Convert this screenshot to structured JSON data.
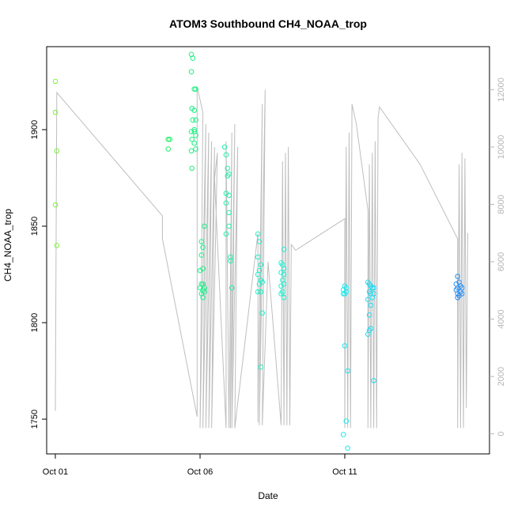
{
  "chart_data": {
    "type": "scatter",
    "title": "ATOM3 Southbound CH4_NOAA_trop",
    "xlabel": "Date",
    "ylabel": "CH4_NOAA_trop",
    "x_ticks": [
      "Oct 01",
      "Oct 06",
      "Oct 11"
    ],
    "x_tick_days": [
      1,
      6,
      11
    ],
    "xlim": [
      0.7,
      16.0
    ],
    "y_ticks": [
      1750,
      1800,
      1850,
      1900
    ],
    "ylim": [
      1732,
      1943
    ],
    "y2_ticks": [
      0,
      2000,
      4000,
      6000,
      8000,
      10000,
      12000
    ],
    "y2lim": [
      -700,
      13500
    ],
    "colors": {
      "altitude_line": "#bebebe",
      "axis": "#000000",
      "secondary_axis": "#b5b5b5",
      "point_gradient": [
        "#7cf23a",
        "#1fee5a",
        "#1ff0c6",
        "#1fe3f2",
        "#2a8cf0"
      ]
    },
    "series": [
      {
        "type": "scatter",
        "points": [
          [
            1.0,
            1925
          ],
          [
            1.0,
            1909
          ],
          [
            1.05,
            1889
          ],
          [
            1.0,
            1861
          ],
          [
            1.05,
            1840
          ],
          [
            4.9,
            1895
          ],
          [
            4.95,
            1895
          ],
          [
            4.9,
            1890
          ],
          [
            5.7,
            1939
          ],
          [
            5.75,
            1937
          ],
          [
            5.7,
            1930
          ],
          [
            5.8,
            1921
          ],
          [
            5.85,
            1921
          ],
          [
            5.72,
            1911
          ],
          [
            5.8,
            1910
          ],
          [
            5.75,
            1905
          ],
          [
            5.85,
            1905
          ],
          [
            5.7,
            1899
          ],
          [
            5.8,
            1899
          ],
          [
            5.85,
            1897
          ],
          [
            5.72,
            1895
          ],
          [
            5.8,
            1893
          ],
          [
            5.7,
            1889
          ],
          [
            5.85,
            1890
          ],
          [
            5.72,
            1880
          ],
          [
            5.8,
            1900
          ],
          [
            6.05,
            1842
          ],
          [
            6.1,
            1839
          ],
          [
            6.15,
            1850
          ],
          [
            6.05,
            1835
          ],
          [
            6.1,
            1828
          ],
          [
            6.0,
            1827
          ],
          [
            6.05,
            1820
          ],
          [
            6.1,
            1820
          ],
          [
            6.15,
            1818
          ],
          [
            6.0,
            1818
          ],
          [
            6.1,
            1817
          ],
          [
            6.15,
            1816
          ],
          [
            6.05,
            1815
          ],
          [
            6.1,
            1813
          ],
          [
            6.85,
            1891
          ],
          [
            6.9,
            1887
          ],
          [
            6.95,
            1880
          ],
          [
            7.0,
            1877
          ],
          [
            6.95,
            1876
          ],
          [
            6.9,
            1867
          ],
          [
            7.0,
            1866
          ],
          [
            6.9,
            1862
          ],
          [
            7.0,
            1857
          ],
          [
            7.0,
            1850
          ],
          [
            6.9,
            1846
          ],
          [
            7.05,
            1834
          ],
          [
            7.05,
            1832
          ],
          [
            7.1,
            1818
          ],
          [
            8.0,
            1846
          ],
          [
            8.05,
            1842
          ],
          [
            8.0,
            1834
          ],
          [
            8.1,
            1830
          ],
          [
            8.05,
            1827
          ],
          [
            8.0,
            1825
          ],
          [
            8.1,
            1822
          ],
          [
            8.05,
            1820
          ],
          [
            8.15,
            1821
          ],
          [
            8.0,
            1816
          ],
          [
            8.1,
            1816
          ],
          [
            8.15,
            1805
          ],
          [
            8.1,
            1777
          ],
          [
            8.9,
            1838
          ],
          [
            8.8,
            1831
          ],
          [
            8.85,
            1830
          ],
          [
            8.9,
            1828
          ],
          [
            8.8,
            1826
          ],
          [
            8.9,
            1825
          ],
          [
            8.85,
            1822
          ],
          [
            8.9,
            1820
          ],
          [
            8.8,
            1819
          ],
          [
            8.85,
            1816
          ],
          [
            8.8,
            1815
          ],
          [
            8.9,
            1813
          ],
          [
            11.0,
            1819
          ],
          [
            11.05,
            1818
          ],
          [
            10.95,
            1817
          ],
          [
            11.0,
            1815
          ],
          [
            11.05,
            1816
          ],
          [
            10.95,
            1815
          ],
          [
            11.0,
            1788
          ],
          [
            11.1,
            1775
          ],
          [
            11.05,
            1749
          ],
          [
            10.95,
            1742
          ],
          [
            11.1,
            1735
          ],
          [
            11.8,
            1821
          ],
          [
            11.85,
            1820
          ],
          [
            11.9,
            1819
          ],
          [
            11.95,
            1818
          ],
          [
            12.0,
            1818
          ],
          [
            11.85,
            1816
          ],
          [
            11.9,
            1815
          ],
          [
            12.0,
            1815
          ],
          [
            11.95,
            1813
          ],
          [
            11.8,
            1812
          ],
          [
            11.9,
            1809
          ],
          [
            11.85,
            1804
          ],
          [
            11.9,
            1797
          ],
          [
            11.85,
            1796
          ],
          [
            11.8,
            1794
          ],
          [
            12.0,
            1770
          ],
          [
            14.9,
            1824
          ],
          [
            14.95,
            1821
          ],
          [
            14.85,
            1820
          ],
          [
            15.0,
            1819
          ],
          [
            14.9,
            1818
          ],
          [
            15.05,
            1818
          ],
          [
            14.85,
            1817
          ],
          [
            15.0,
            1816
          ],
          [
            14.9,
            1815
          ],
          [
            15.05,
            1815
          ],
          [
            14.95,
            1814
          ],
          [
            14.9,
            1813
          ]
        ]
      },
      {
        "type": "line",
        "axis": "secondary",
        "points": [
          [
            1.0,
            800
          ],
          [
            1.05,
            11900
          ],
          [
            4.7,
            7600
          ],
          [
            4.7,
            6800
          ],
          [
            5.9,
            600
          ],
          [
            5.9,
            12100
          ],
          [
            6.1,
            11200
          ],
          [
            6.0,
            200
          ],
          [
            6.2,
            10800
          ],
          [
            6.1,
            200
          ],
          [
            6.3,
            10500
          ],
          [
            6.2,
            200
          ],
          [
            6.4,
            10200
          ],
          [
            6.3,
            200
          ],
          [
            6.5,
            10000
          ],
          [
            6.4,
            200
          ],
          [
            6.6,
            9800
          ],
          [
            6.5,
            8900
          ],
          [
            6.9,
            200
          ],
          [
            6.9,
            10200
          ],
          [
            7.0,
            200
          ],
          [
            7.1,
            10500
          ],
          [
            7.05,
            200
          ],
          [
            7.2,
            10800
          ],
          [
            7.1,
            200
          ],
          [
            7.3,
            10000
          ],
          [
            7.2,
            200
          ],
          [
            8.0,
            7000
          ],
          [
            8.0,
            400
          ],
          [
            8.15,
            11500
          ],
          [
            8.05,
            300
          ],
          [
            8.25,
            12000
          ],
          [
            8.15,
            300
          ],
          [
            8.35,
            6000
          ],
          [
            8.8,
            300
          ],
          [
            8.85,
            9500
          ],
          [
            8.9,
            300
          ],
          [
            8.95,
            9800
          ],
          [
            9.0,
            300
          ],
          [
            9.05,
            10000
          ],
          [
            9.1,
            300
          ],
          [
            9.15,
            6600
          ],
          [
            9.3,
            6400
          ],
          [
            11.0,
            7500
          ],
          [
            11.0,
            200
          ],
          [
            11.05,
            10000
          ],
          [
            11.1,
            200
          ],
          [
            11.15,
            10500
          ],
          [
            11.2,
            200
          ],
          [
            11.25,
            11500
          ],
          [
            11.4,
            10800
          ],
          [
            11.8,
            7800
          ],
          [
            11.8,
            200
          ],
          [
            11.85,
            9400
          ],
          [
            11.9,
            200
          ],
          [
            11.95,
            9800
          ],
          [
            12.0,
            200
          ],
          [
            12.05,
            10200
          ],
          [
            12.1,
            200
          ],
          [
            12.15,
            11000
          ],
          [
            12.2,
            11400
          ],
          [
            13.6,
            9400
          ],
          [
            14.9,
            6800
          ],
          [
            14.9,
            200
          ],
          [
            14.95,
            9400
          ],
          [
            15.0,
            200
          ],
          [
            15.05,
            9800
          ],
          [
            15.1,
            200
          ],
          [
            15.15,
            9600
          ],
          [
            15.2,
            900
          ],
          [
            15.25,
            7000
          ]
        ]
      }
    ]
  }
}
